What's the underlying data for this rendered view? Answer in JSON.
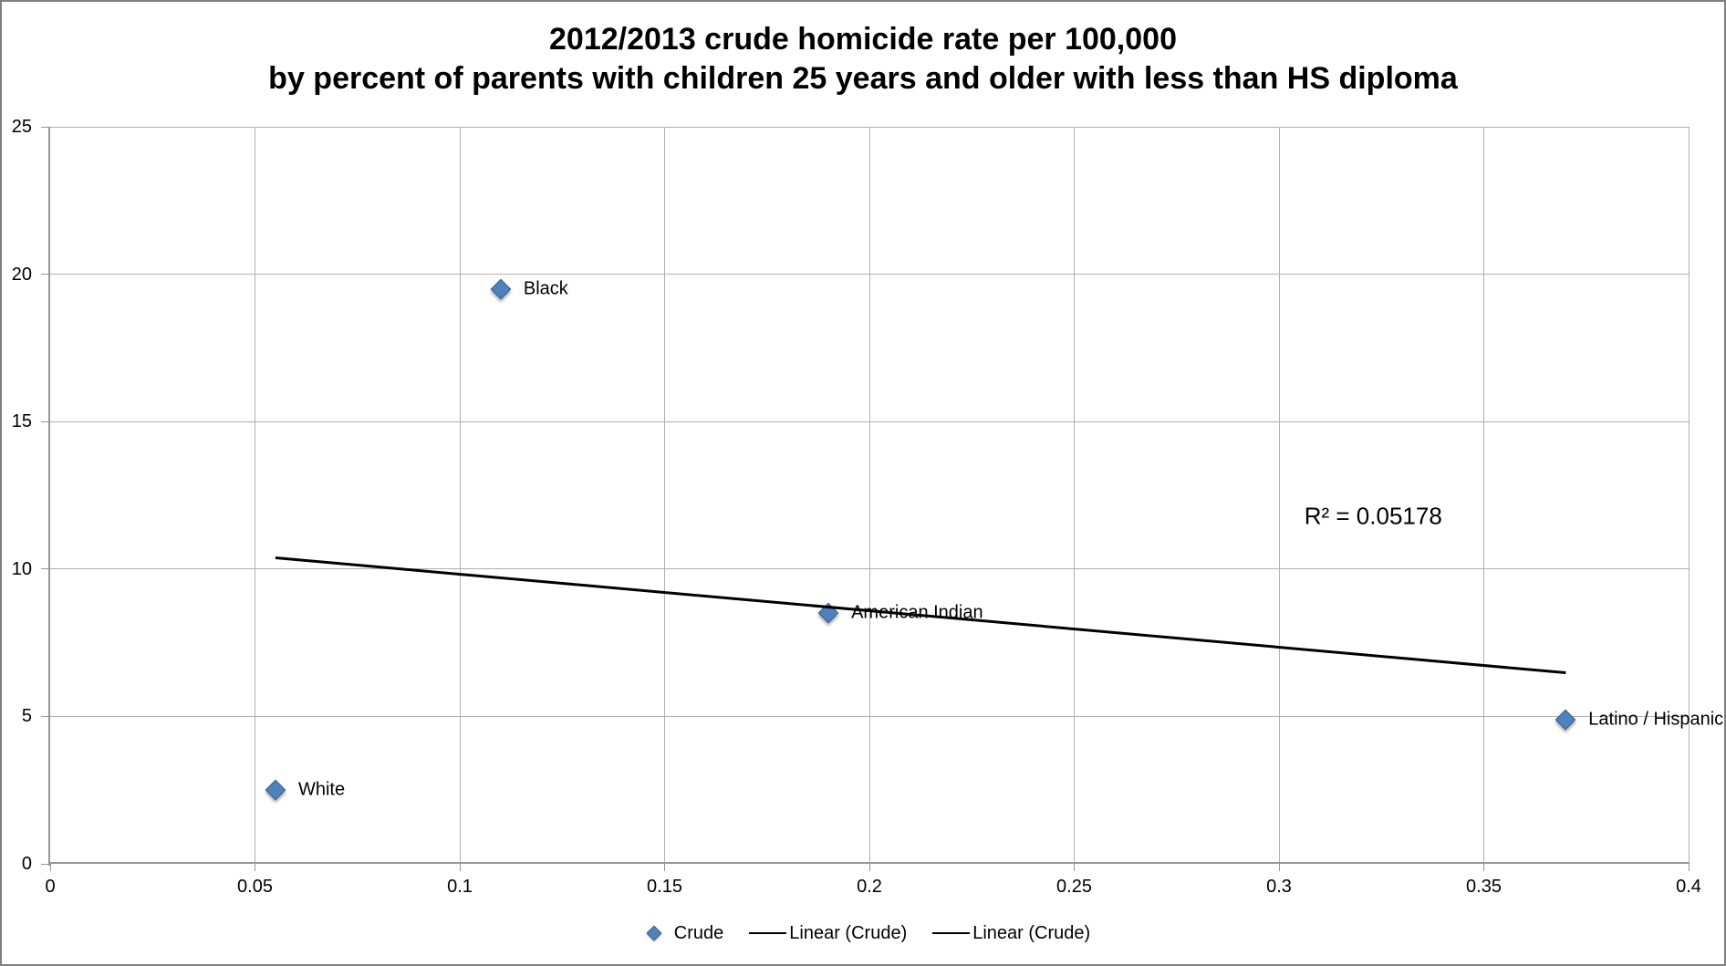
{
  "chart_data": {
    "type": "scatter",
    "title_line1": "2012/2013 crude homicide rate per 100,000",
    "title_line2": "by percent of parents with children 25 years and older with less than HS diploma",
    "xlabel": "",
    "ylabel": "",
    "xlim": [
      0,
      0.4
    ],
    "ylim": [
      0,
      25
    ],
    "x_tick_labels": [
      "0",
      "0.05",
      "0.1",
      "0.15",
      "0.2",
      "0.25",
      "0.3",
      "0.35",
      "0.4"
    ],
    "y_tick_labels": [
      "0",
      "5",
      "10",
      "15",
      "20",
      "25"
    ],
    "grid": "on",
    "legend_position": "bottom",
    "series": [
      {
        "name": "Crude",
        "marker": "diamond",
        "points": [
          {
            "label": "White",
            "x": 0.055,
            "y": 2.5
          },
          {
            "label": "Black",
            "x": 0.11,
            "y": 19.5
          },
          {
            "label": "American Indian",
            "x": 0.19,
            "y": 8.5
          },
          {
            "label": "Latino / Hispanic",
            "x": 0.37,
            "y": 4.9
          }
        ]
      }
    ],
    "trendline": {
      "name": "Linear (Crude)",
      "x1": 0.055,
      "y1": 10.4,
      "x2": 0.37,
      "y2": 6.5,
      "r2_text": "R² = 0.05178",
      "r2_label_x": 0.323,
      "r2_label_y": 11.8
    },
    "legend": [
      {
        "type": "diamond-marker",
        "label": "Crude"
      },
      {
        "type": "line",
        "label": "Linear (Crude)"
      },
      {
        "type": "line",
        "label": "Linear (Crude)"
      }
    ],
    "colors": {
      "marker_fill": "#4f81bd",
      "marker_edge": "#38618f",
      "trendline": "#000000",
      "gridline": "#b0b0b0",
      "axis_line": "#969696",
      "text": "#000000",
      "frame_border": "#7f7f7f",
      "background": "#ffffff"
    }
  }
}
